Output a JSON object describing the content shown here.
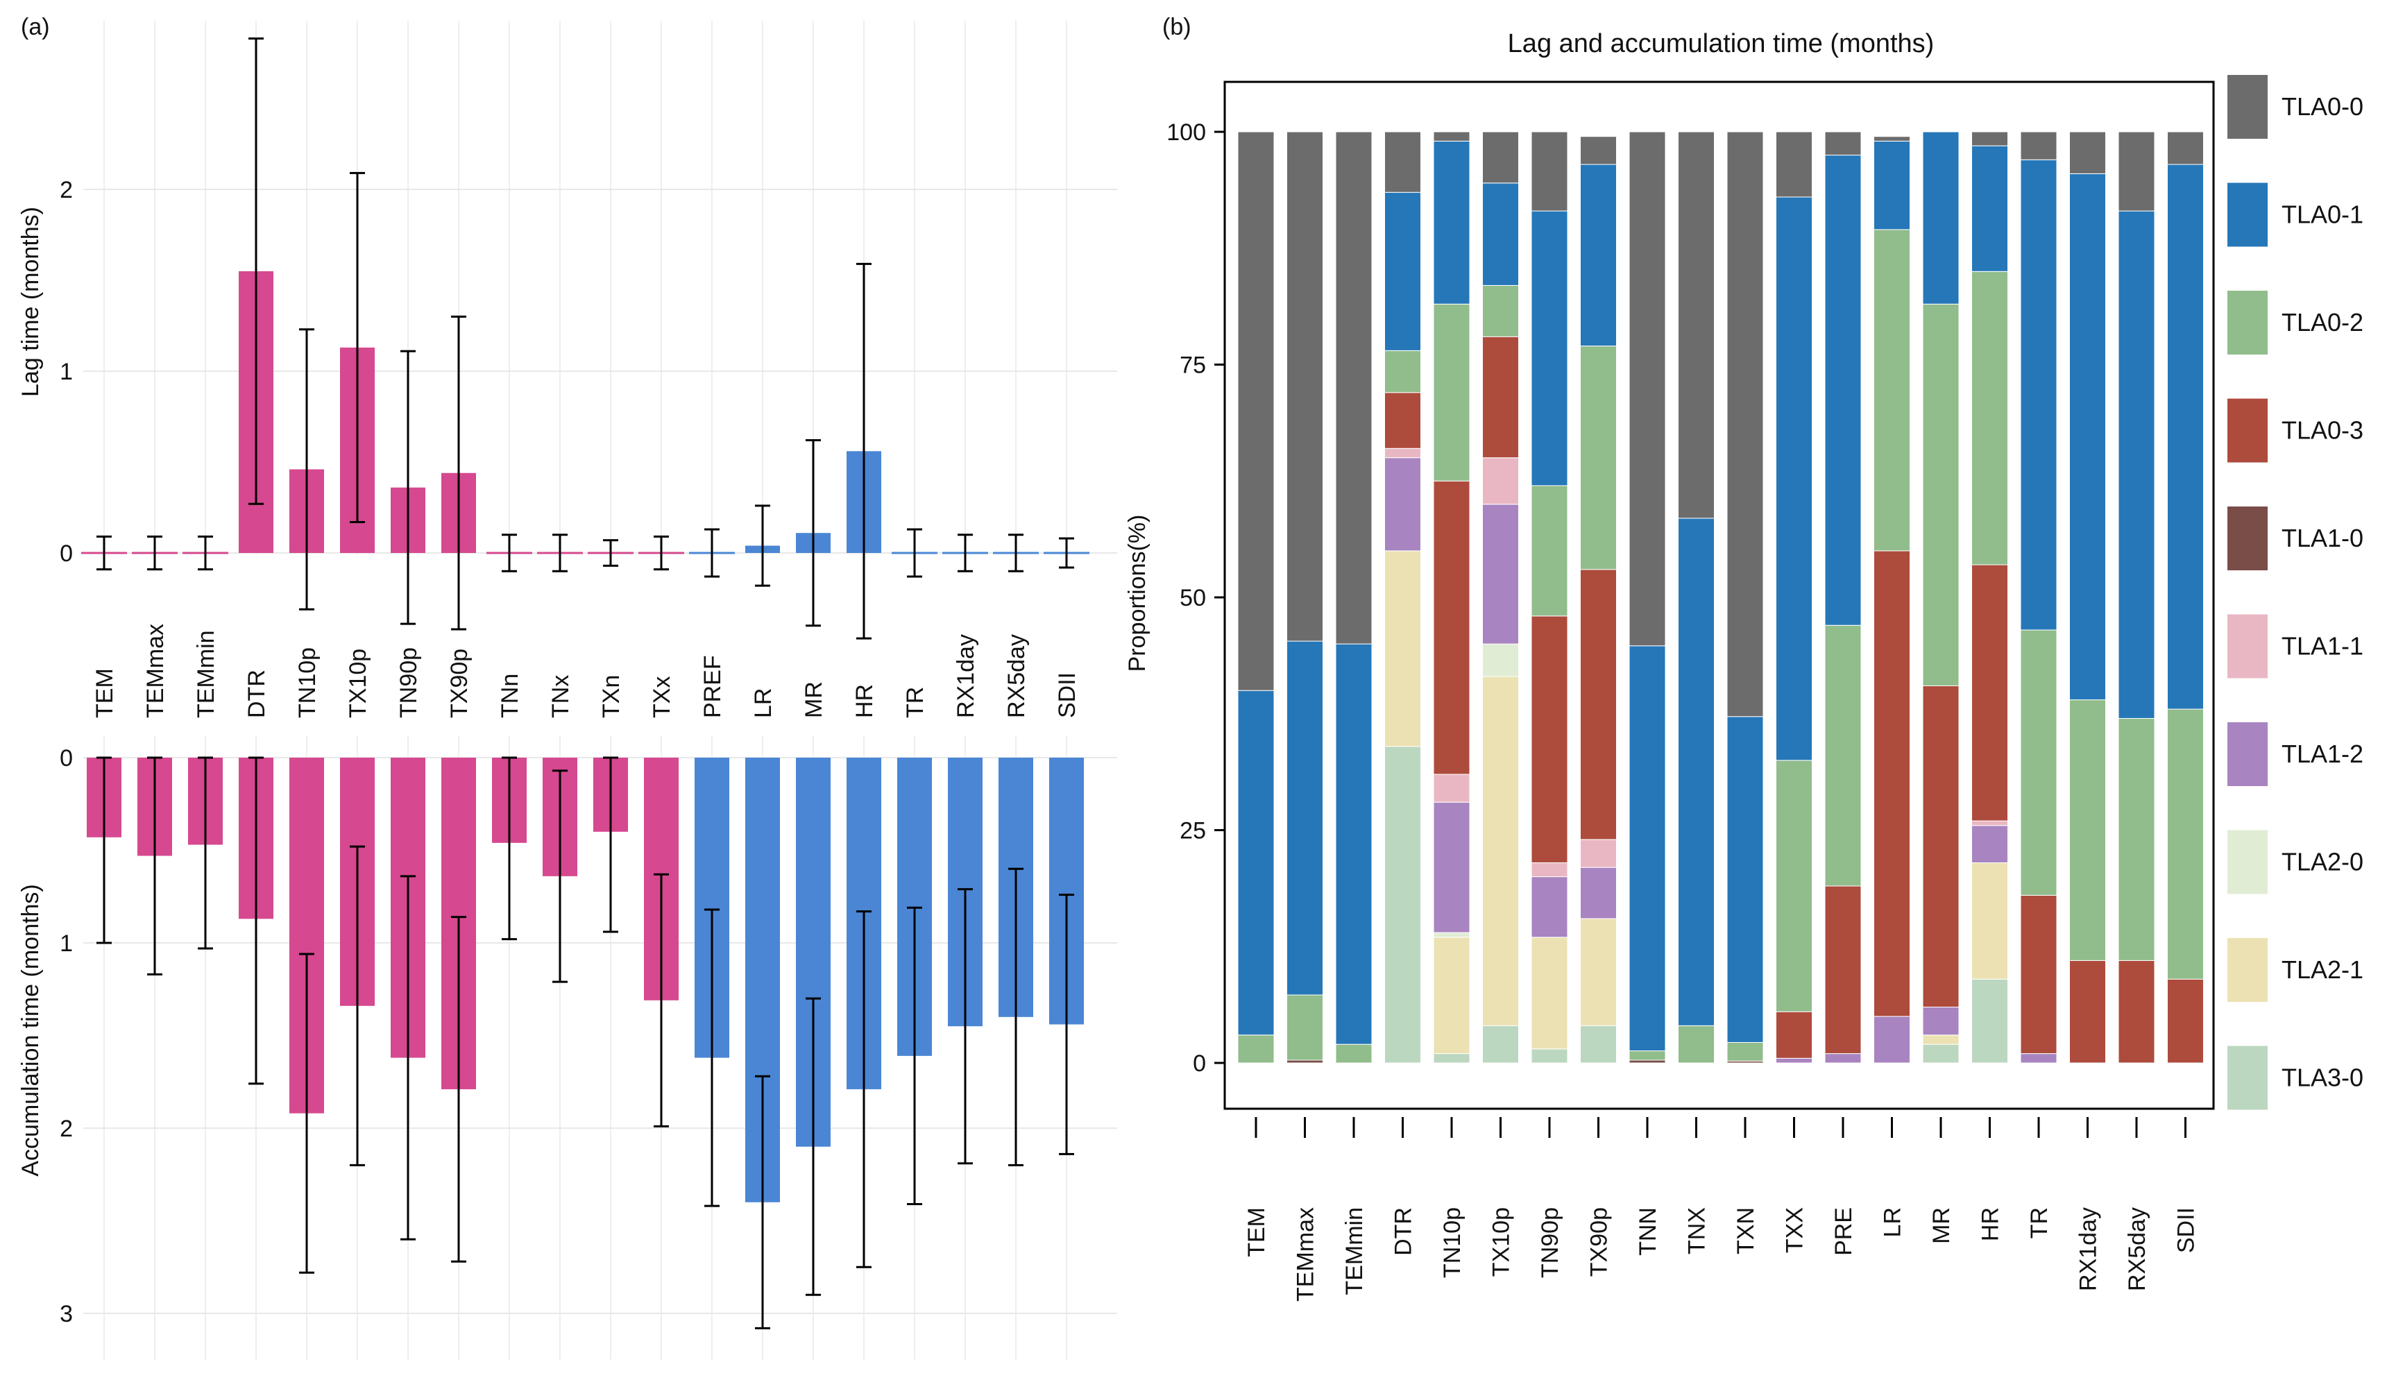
{
  "chart_data": [
    {
      "panel": "(a)",
      "type": "bar",
      "subplots": [
        {
          "name": "lag",
          "ylabel": "Lag time (months)",
          "ylim": [
            -0.4,
            2.8
          ],
          "yticks": [
            0,
            1,
            2
          ],
          "tick_labels": [
            "0",
            "1",
            "2"
          ]
        },
        {
          "name": "accumulation",
          "ylabel": "Accumulation time (months)",
          "ylim": [
            0,
            3.1
          ],
          "inverted": true,
          "yticks": [
            0,
            1,
            2,
            3
          ],
          "tick_labels": [
            "0",
            "1",
            "2",
            "3"
          ]
        }
      ],
      "categories": [
        "TEM",
        "TEMmax",
        "TEMmin",
        "DTR",
        "TN10p",
        "TX10p",
        "TN90p",
        "TX90p",
        "TNn",
        "TNx",
        "TXn",
        "TXx",
        "PREF",
        "LR",
        "MR",
        "HR",
        "TR",
        "RX1day",
        "RX5day",
        "SDII"
      ],
      "group_colors": {
        "temperature": "#d6488f",
        "precipitation": "#4a86d4"
      },
      "category_groups": [
        "temperature",
        "temperature",
        "temperature",
        "temperature",
        "temperature",
        "temperature",
        "temperature",
        "temperature",
        "temperature",
        "temperature",
        "temperature",
        "temperature",
        "precipitation",
        "precipitation",
        "precipitation",
        "precipitation",
        "precipitation",
        "precipitation",
        "precipitation",
        "precipitation"
      ],
      "lag_mean": [
        0.0,
        0.0,
        0.0,
        1.55,
        0.46,
        1.13,
        0.36,
        0.44,
        0.0,
        0.0,
        0.0,
        0.0,
        0.0,
        0.04,
        0.11,
        0.56,
        0.0,
        0.0,
        0.0,
        0.0
      ],
      "lag_err": [
        0.09,
        0.09,
        0.09,
        1.28,
        0.77,
        0.96,
        0.75,
        0.86,
        0.1,
        0.1,
        0.07,
        0.09,
        0.13,
        0.22,
        0.51,
        1.03,
        0.13,
        0.1,
        0.1,
        0.08
      ],
      "acc_mean": [
        0.43,
        0.53,
        0.47,
        0.87,
        1.92,
        1.34,
        1.62,
        1.79,
        0.46,
        0.64,
        0.4,
        1.31,
        1.62,
        2.4,
        2.1,
        1.79,
        1.61,
        1.45,
        1.4,
        1.44
      ],
      "acc_err": [
        0.57,
        0.64,
        0.56,
        0.89,
        0.86,
        0.86,
        0.98,
        0.93,
        0.52,
        0.57,
        0.54,
        0.68,
        0.8,
        0.68,
        0.8,
        0.96,
        0.8,
        0.74,
        0.8,
        0.7
      ]
    },
    {
      "panel": "(b)",
      "type": "stacked-bar",
      "title": "Lag and accumulation time (months)",
      "ylabel": "Proportions(%)",
      "ylim": [
        -5,
        105
      ],
      "yticks": [
        0,
        25,
        50,
        75,
        100
      ],
      "tick_labels": [
        "0",
        "25",
        "50",
        "75",
        "100"
      ],
      "legend_position": "right",
      "categories": [
        "TEM",
        "TEMmax",
        "TEMmin",
        "DTR",
        "TN10p",
        "TX10p",
        "TN90p",
        "TX90p",
        "TNN",
        "TNX",
        "TXN",
        "TXX",
        "PRE",
        "LR",
        "MR",
        "HR",
        "TR",
        "RX1day",
        "RX5day",
        "SDII"
      ],
      "series": [
        {
          "name": "TLA3-0",
          "color": "#bcd7bf",
          "values": [
            0,
            0,
            0,
            34,
            1,
            4,
            1.5,
            4,
            0,
            0,
            0,
            0,
            0,
            0,
            2,
            9,
            0,
            0,
            0,
            0
          ]
        },
        {
          "name": "TLA2-1",
          "color": "#ece1b2",
          "values": [
            0,
            0,
            0,
            21,
            12.5,
            37.5,
            12,
            11.5,
            0,
            0,
            0,
            0,
            0,
            0,
            1,
            12.5,
            0,
            0,
            0,
            0
          ]
        },
        {
          "name": "TLA2-0",
          "color": "#e1ecd5",
          "values": [
            0,
            0,
            0,
            0,
            0.5,
            3.5,
            0,
            0,
            0,
            0,
            0,
            0,
            0,
            0,
            0,
            0,
            0,
            0,
            0,
            0
          ]
        },
        {
          "name": "TLA1-2",
          "color": "#a884c0",
          "values": [
            0,
            0,
            0,
            10,
            14,
            15,
            6.5,
            5.5,
            0,
            0,
            0,
            0.5,
            1,
            5,
            3,
            4,
            1,
            0,
            0,
            0
          ]
        },
        {
          "name": "TLA1-1",
          "color": "#e9b7c3",
          "values": [
            0,
            0,
            0,
            1,
            3,
            5,
            1.5,
            3,
            0,
            0,
            0,
            0,
            0,
            0,
            0,
            0.5,
            0,
            0,
            0,
            0
          ]
        },
        {
          "name": "TLA1-0",
          "color": "#7a4d48",
          "values": [
            0,
            0.3,
            0,
            0,
            0,
            0,
            0,
            0,
            0.3,
            0,
            0.2,
            0,
            0,
            0,
            0,
            0,
            0,
            0,
            0,
            0
          ]
        },
        {
          "name": "TLA0-3",
          "color": "#ad4b3c",
          "values": [
            0,
            0,
            0,
            6,
            31.5,
            13,
            26.5,
            29,
            0,
            0,
            0,
            5,
            18,
            50,
            34.5,
            27.5,
            17,
            11,
            11,
            9
          ]
        },
        {
          "name": "TLA0-2",
          "color": "#91bc8b",
          "values": [
            3,
            7,
            2,
            4.5,
            19,
            5.5,
            14,
            24,
            1,
            4,
            2,
            27,
            28,
            34.5,
            41,
            31.5,
            28.5,
            28,
            26,
            29
          ]
        },
        {
          "name": "TLA0-1",
          "color": "#2577b8",
          "values": [
            37,
            38,
            43,
            17,
            17.5,
            11,
            29.5,
            19.5,
            43.5,
            54.5,
            35,
            60.5,
            50.5,
            9.5,
            18.5,
            13.5,
            50.5,
            56.5,
            54.5,
            58.5
          ]
        },
        {
          "name": "TLA0-0",
          "color": "#6c6c6c",
          "values": [
            60,
            54.7,
            55,
            6.5,
            1,
            5.5,
            8.5,
            3,
            55.2,
            41.5,
            62.8,
            7,
            2.5,
            0.5,
            0,
            1.5,
            3,
            4.5,
            8.5,
            3.5
          ]
        }
      ],
      "legend_order": [
        "TLA0-0",
        "TLA0-1",
        "TLA0-2",
        "TLA0-3",
        "TLA1-0",
        "TLA1-1",
        "TLA1-2",
        "TLA2-0",
        "TLA2-1",
        "TLA3-0"
      ]
    }
  ]
}
